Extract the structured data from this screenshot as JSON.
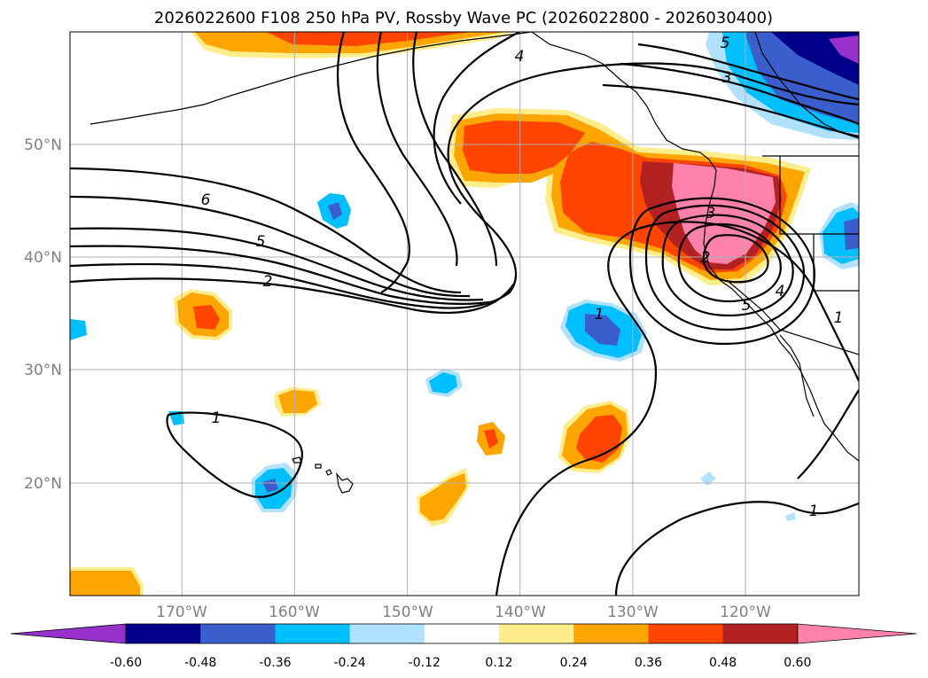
{
  "title": "2026022600 F108 250 hPa PV, Rossby Wave PC (2026022800 - 2026030400)",
  "map": {
    "region": "North Pacific / Western North America",
    "projection": "equirectangular",
    "lon_range": [
      -180,
      -110
    ],
    "lat_range": [
      10,
      60
    ],
    "lat_ticks": [
      "50°N",
      "40°N",
      "30°N",
      "20°N"
    ],
    "lon_ticks": [
      "170°W",
      "160°W",
      "150°W",
      "140°W",
      "130°W",
      "120°W"
    ],
    "gridlines": true
  },
  "colorbar": {
    "levels": [
      "-0.60",
      "-0.48",
      "-0.36",
      "-0.24",
      "-0.12",
      "0.12",
      "0.24",
      "0.36",
      "0.48",
      "0.60"
    ],
    "colors": [
      "#9932cc",
      "#00008b",
      "#3a5fcd",
      "#00bfff",
      "#b0e2ff",
      "#ffffff",
      "#ffec8b",
      "#ffa500",
      "#ff4500",
      "#b22222",
      "#ff82ab"
    ],
    "extend": "both"
  },
  "contour_labels": [
    "4",
    "5",
    "3",
    "6",
    "5",
    "2",
    "3",
    "1",
    "2",
    "4",
    "5",
    "1",
    "1",
    "1"
  ]
}
